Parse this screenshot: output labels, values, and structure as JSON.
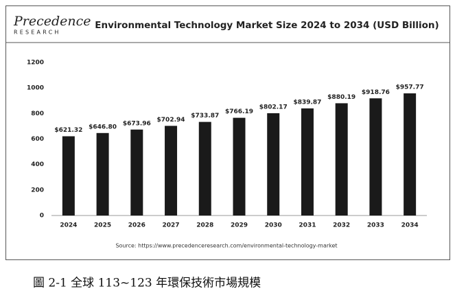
{
  "logo": {
    "name": "Precedence",
    "tagline": "RESEARCH"
  },
  "chart_data": {
    "type": "bar",
    "title": "Environmental Technology Market Size 2024 to 2034 (USD Billion)",
    "categories": [
      "2024",
      "2025",
      "2026",
      "2027",
      "2028",
      "2029",
      "2030",
      "2031",
      "2032",
      "2033",
      "2034"
    ],
    "values": [
      621.32,
      646.8,
      673.96,
      702.94,
      733.87,
      766.19,
      802.17,
      839.87,
      880.19,
      918.76,
      957.77
    ],
    "value_labels": [
      "$621.32",
      "$646.80",
      "$673.96",
      "$702.94",
      "$733.87",
      "$766.19",
      "$802.17",
      "$839.87",
      "$880.19",
      "$918.76",
      "$957.77"
    ],
    "color": "#1a1a1a",
    "ylim": [
      0,
      1200
    ],
    "yticks": [
      0,
      200,
      400,
      600,
      800,
      1000,
      1200
    ],
    "grid": false,
    "source": "Source: https://www.precedenceresearch.com/environmental-technology-market"
  },
  "caption": "圖 2-1  全球 113~123 年環保技術市場規模"
}
